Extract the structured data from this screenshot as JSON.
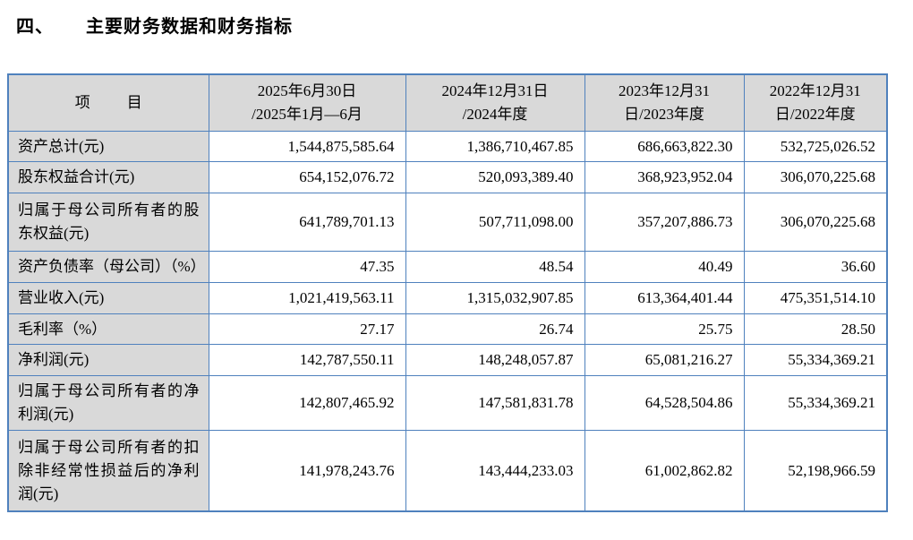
{
  "title": {
    "section_number": "四、",
    "text": "主要财务数据和财务指标"
  },
  "colors": {
    "table_border": "#4F81BD",
    "header_bg": "#D9D9D9",
    "cell_bg": "#FFFFFF",
    "text": "#000000"
  },
  "table": {
    "item_header": "项　目",
    "period_headers": [
      "2025年6月30日\n/2025年1月—6月",
      "2024年12月31日\n/2024年度",
      "2023年12月31\n日/2023年度",
      "2022年12月31\n日/2022年度"
    ],
    "rows": [
      {
        "label": "资产总计(元)",
        "values": [
          "1,544,875,585.64",
          "1,386,710,467.85",
          "686,663,822.30",
          "532,725,026.52"
        ]
      },
      {
        "label": "股东权益合计(元)",
        "values": [
          "654,152,076.72",
          "520,093,389.40",
          "368,923,952.04",
          "306,070,225.68"
        ]
      },
      {
        "label": "归属于母公司所有者的股东权益(元)",
        "values": [
          "641,789,701.13",
          "507,711,098.00",
          "357,207,886.73",
          "306,070,225.68"
        ]
      },
      {
        "label": "资产负债率（母公司）（%）",
        "values": [
          "47.35",
          "48.54",
          "40.49",
          "36.60"
        ]
      },
      {
        "label": "营业收入(元)",
        "values": [
          "1,021,419,563.11",
          "1,315,032,907.85",
          "613,364,401.44",
          "475,351,514.10"
        ]
      },
      {
        "label": "毛利率（%）",
        "values": [
          "27.17",
          "26.74",
          "25.75",
          "28.50"
        ]
      },
      {
        "label": "净利润(元)",
        "values": [
          "142,787,550.11",
          "148,248,057.87",
          "65,081,216.27",
          "55,334,369.21"
        ]
      },
      {
        "label": "归属于母公司所有者的净利润(元)",
        "values": [
          "142,807,465.92",
          "147,581,831.78",
          "64,528,504.86",
          "55,334,369.21"
        ]
      },
      {
        "label": "归属于母公司所有者的扣除非经常性损益后的净利润(元)",
        "values": [
          "141,978,243.76",
          "143,444,233.03",
          "61,002,862.82",
          "52,198,966.59"
        ]
      }
    ]
  }
}
